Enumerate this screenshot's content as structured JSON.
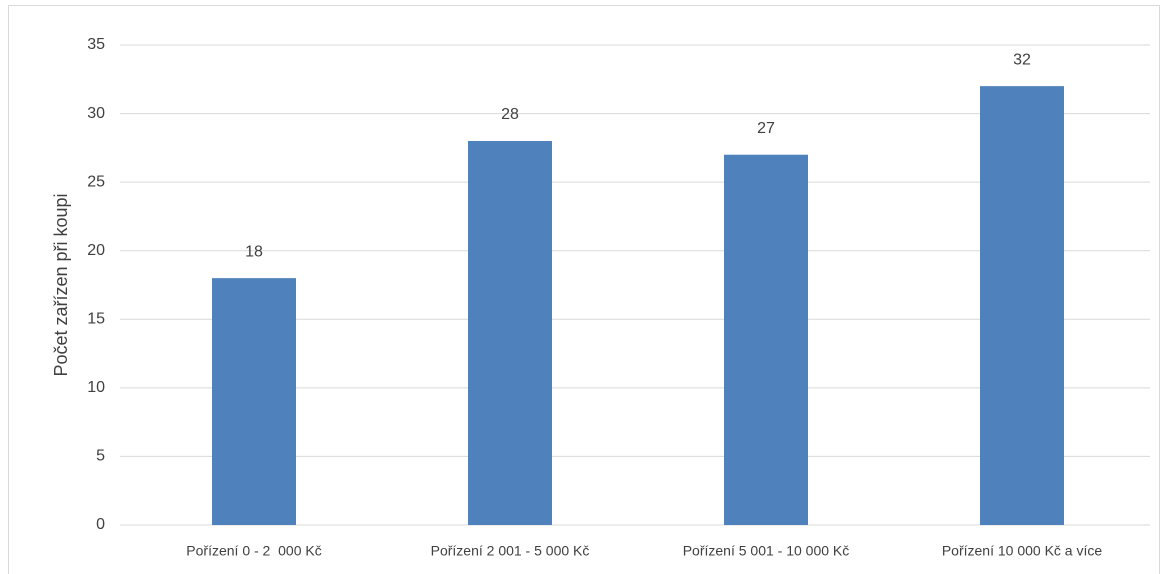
{
  "chart_data": {
    "type": "bar",
    "y_label": "Počet zařízen při koupi",
    "categories": [
      "Pořízení 0 - 2  000 Kč",
      "Pořízení 2 001 - 5 000 Kč",
      "Pořízení 5 001 - 10 000 Kč",
      "Pořízení 10 000 Kč a více"
    ],
    "values": [
      18,
      28,
      27,
      32
    ],
    "color": "#4f81bd",
    "ylim": [
      0,
      35
    ],
    "yticks": [
      0,
      5,
      10,
      15,
      20,
      25,
      30,
      35
    ],
    "grid": true,
    "data_labels": true
  }
}
